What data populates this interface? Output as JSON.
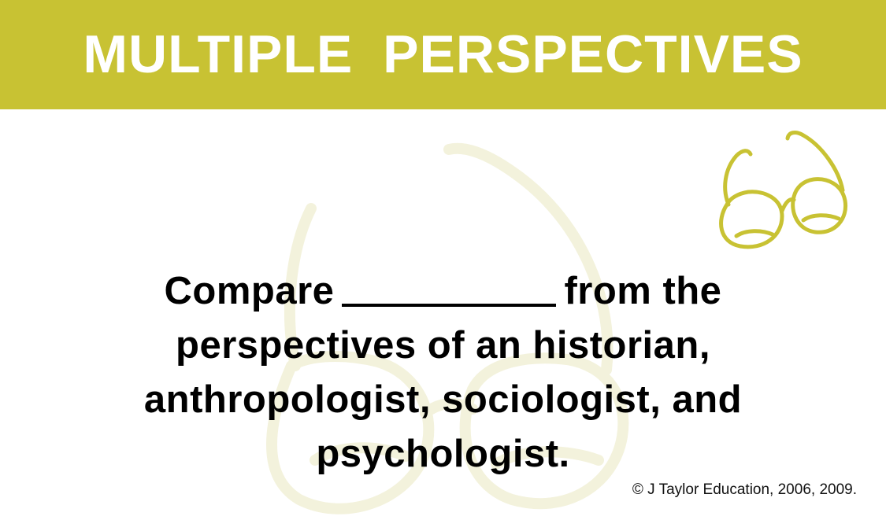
{
  "slide": {
    "title": "MULTIPLE  PERSPECTIVES",
    "prompt": {
      "line1_before_blank": "Compare",
      "line1_after_blank": "from the",
      "line2": "perspectives of an historian,",
      "line3": "anthropologist, sociologist, and",
      "line4": "psychologist."
    },
    "copyright": "© J Taylor Education, 2006, 2009."
  },
  "icons": {
    "corner": "eyeglasses-icon",
    "background": "eyeglasses-watermark-icon"
  },
  "colors": {
    "band": "#c8c233",
    "title_text": "#ffffff",
    "glasses_stroke": "#c8c233",
    "watermark_stroke": "#f3f2dc",
    "body_text": "#000000"
  }
}
